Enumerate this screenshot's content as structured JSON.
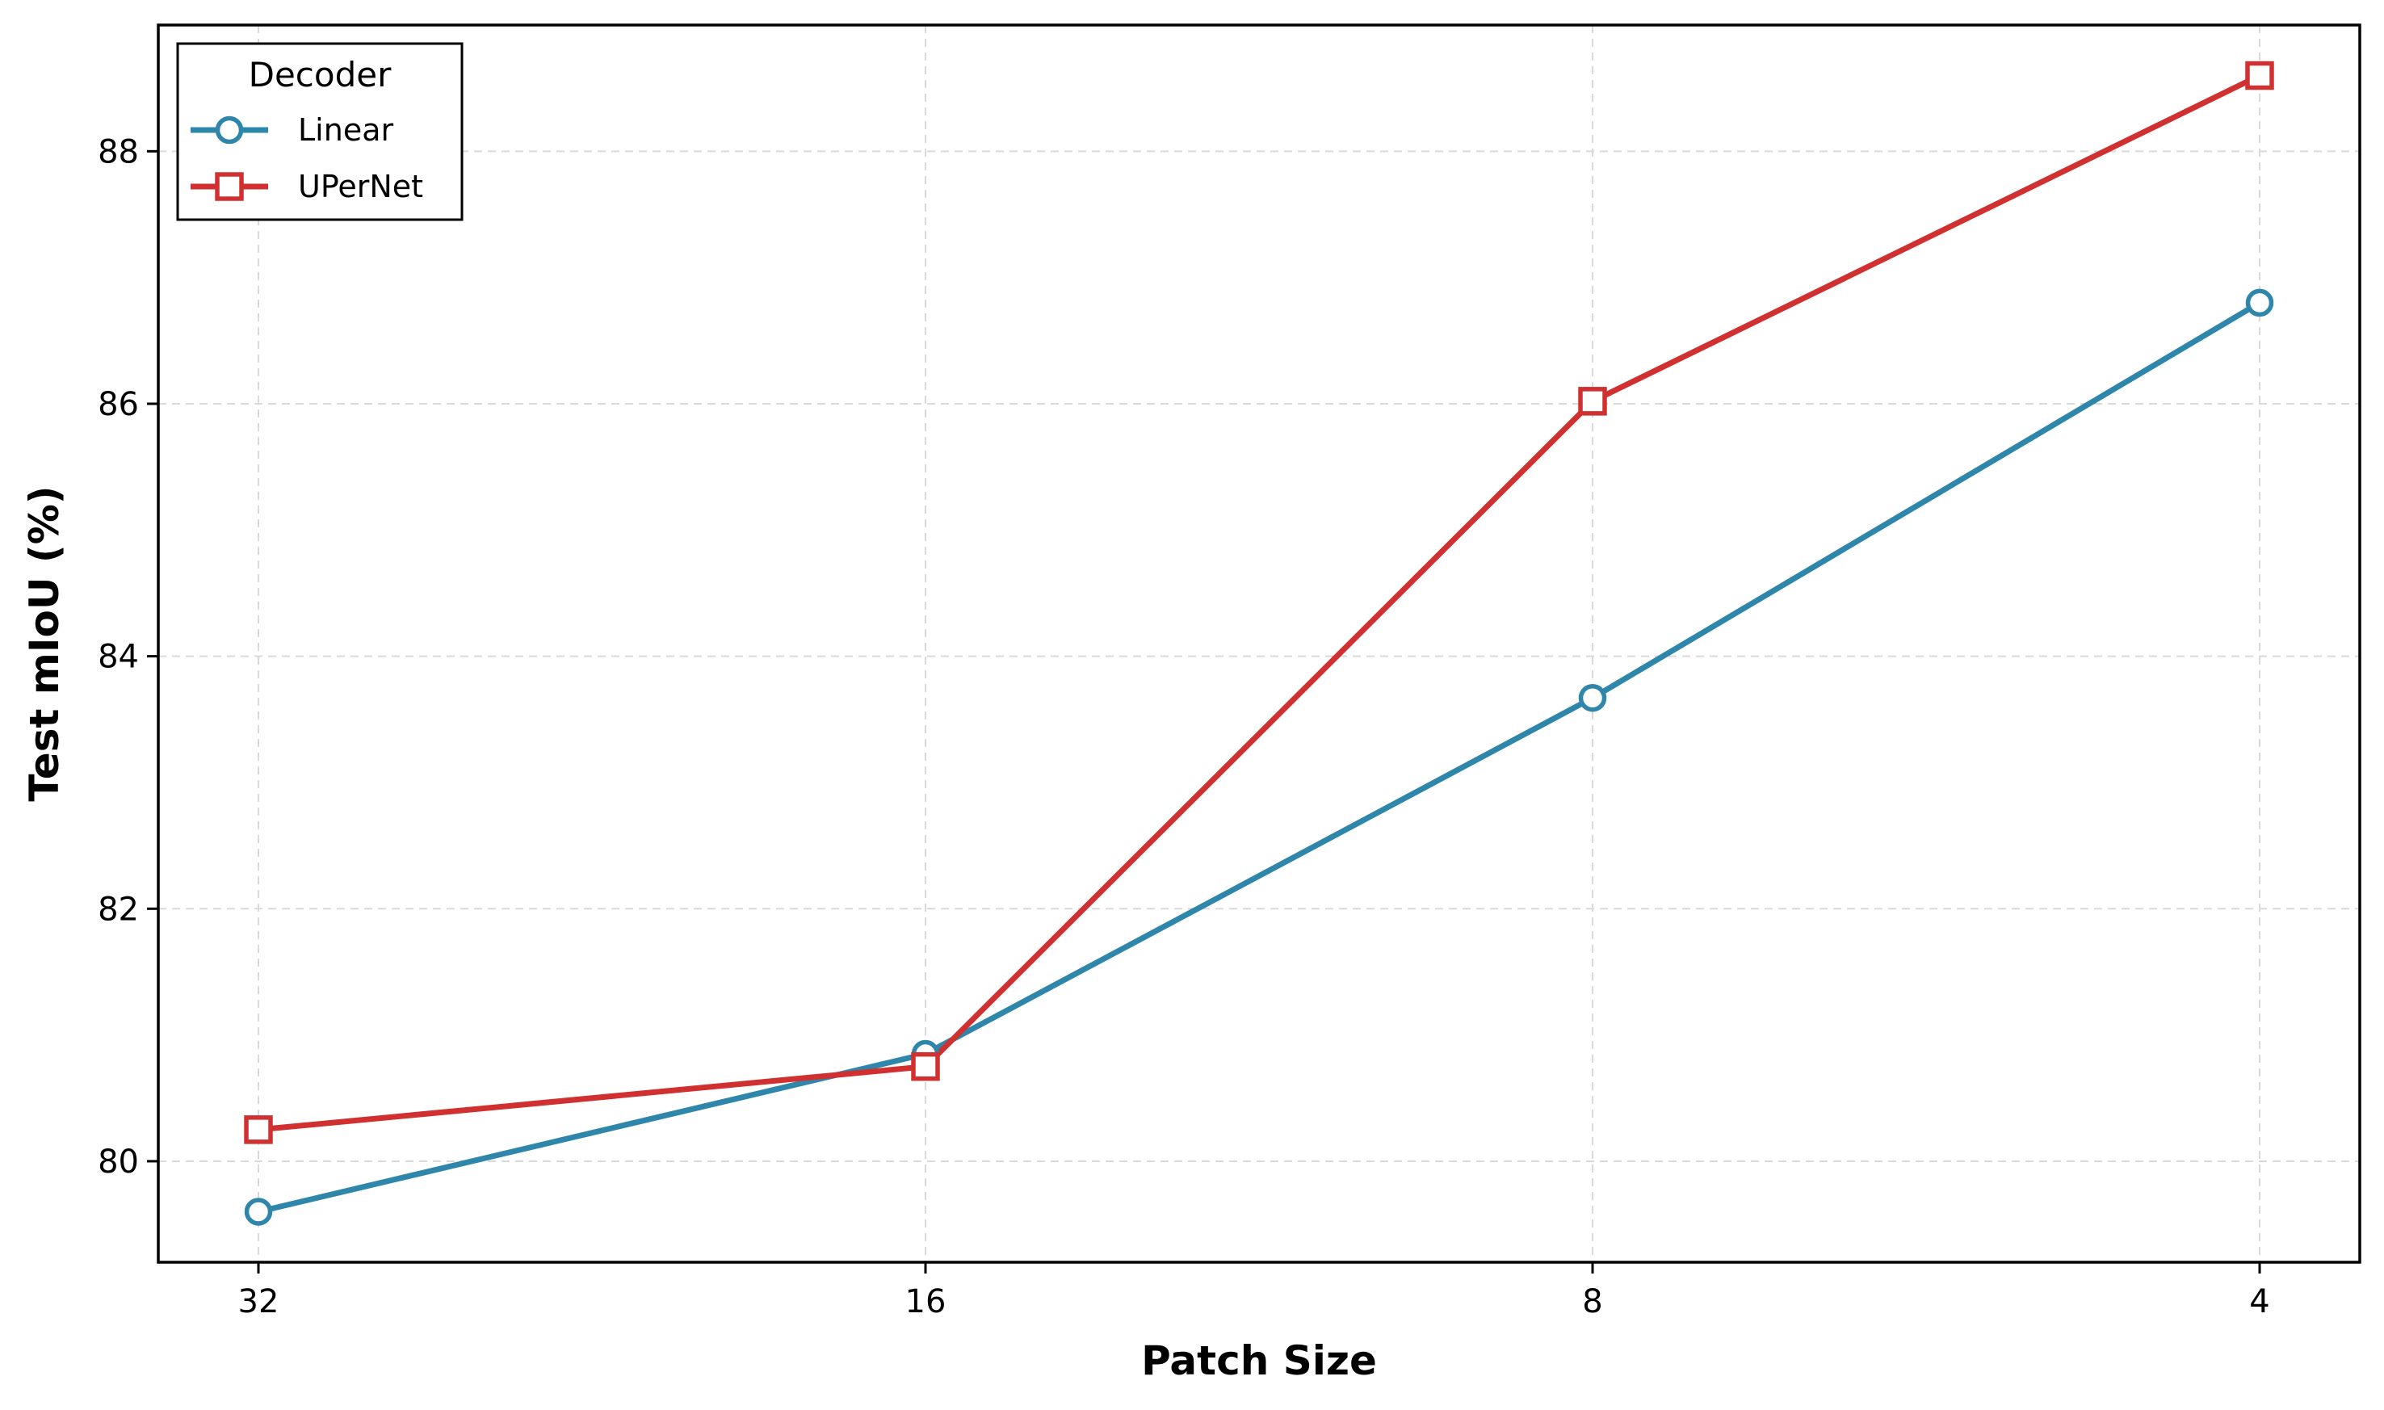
{
  "chart_data": {
    "type": "line",
    "xlabel": "Patch Size",
    "ylabel": "Test mIoU (%)",
    "x_categories": [
      "32",
      "16",
      "8",
      "4"
    ],
    "x_scale": "log2-reversed",
    "x": [
      32,
      16,
      8,
      4
    ],
    "ylim": [
      79.2,
      89.0
    ],
    "yticks": [
      80,
      82,
      84,
      86,
      88
    ],
    "grid": true,
    "legend": {
      "title": "Decoder",
      "placement": "top-left"
    },
    "series": [
      {
        "name": "Linear",
        "marker": "circle",
        "color": "#2e86ab",
        "values": [
          79.6,
          80.85,
          83.67,
          86.8
        ]
      },
      {
        "name": "UPerNet",
        "marker": "square",
        "color": "#d03030",
        "values": [
          80.25,
          80.75,
          86.02,
          88.6
        ]
      }
    ]
  }
}
